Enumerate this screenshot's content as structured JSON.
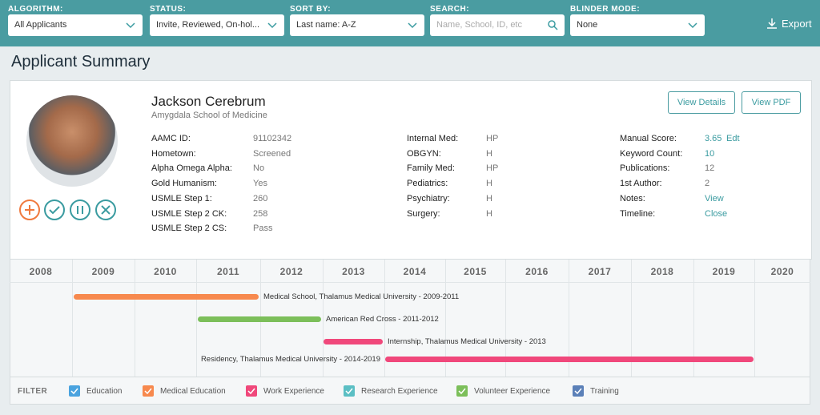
{
  "toolbar": {
    "filters": [
      {
        "label": "ALGORITHM:",
        "value": "All Applicants"
      },
      {
        "label": "STATUS:",
        "value": "Invite, Reviewed, On-hol..."
      },
      {
        "label": "SORT BY:",
        "value": "Last name: A-Z"
      },
      {
        "label": "SEARCH:",
        "placeholder": "Name, School, ID, etc"
      },
      {
        "label": "BLINDER MODE:",
        "value": "None"
      }
    ],
    "export": "Export"
  },
  "page_title": "Applicant Summary",
  "applicant": {
    "name": "Jackson Cerebrum",
    "school": "Amygdala School of Medicine",
    "buttons": [
      "View Details",
      "View PDF"
    ],
    "columns": [
      [
        [
          "AAMC ID:",
          "91102342"
        ],
        [
          "Hometown:",
          "Screened"
        ],
        [
          "Alpha Omega Alpha:",
          "No"
        ],
        [
          "Gold Humanism:",
          "Yes"
        ],
        [
          "USMLE Step 1:",
          "260"
        ],
        [
          "USMLE Step 2 CK:",
          "258"
        ],
        [
          "USMLE Step 2 CS:",
          "Pass"
        ]
      ],
      [
        [
          "Internal Med:",
          "HP"
        ],
        [
          "OBGYN:",
          "H"
        ],
        [
          "Family Med:",
          "HP"
        ],
        [
          "Pediatrics:",
          "H"
        ],
        [
          "Psychiatry:",
          "H"
        ],
        [
          "Surgery:",
          "H"
        ]
      ],
      [
        [
          "Manual Score:",
          "3.65",
          "Edt"
        ],
        [
          "Keyword Count:",
          "10"
        ],
        [
          "Publications:",
          "12"
        ],
        [
          "1st Author:",
          "2"
        ],
        [
          "Notes:",
          "View"
        ],
        [
          "Timeline:",
          "Close"
        ]
      ]
    ]
  },
  "timeline": {
    "years": [
      "2008",
      "2009",
      "2010",
      "2011",
      "2012",
      "2013",
      "2014",
      "2015",
      "2016",
      "2017",
      "2018",
      "2019",
      "2020"
    ],
    "events": [
      {
        "label": "Medical School, Thalamus Medical University - 2009-2011",
        "color": "#f7894e"
      },
      {
        "label": "American Red Cross - 2011-2012",
        "color": "#7cbf5a"
      },
      {
        "label": "Internship, Thalamus Medical University - 2013",
        "color": "#f0487b"
      },
      {
        "label": "Residency, Thalamus Medical University - 2014-2019",
        "color": "#f0487b"
      }
    ]
  },
  "filter": {
    "label": "FILTER",
    "options": [
      {
        "label": "Education",
        "color": "#4aa3df"
      },
      {
        "label": "Medical Education",
        "color": "#f7894e"
      },
      {
        "label": "Work Experience",
        "color": "#f0487b"
      },
      {
        "label": "Research Experience",
        "color": "#5bbfc4"
      },
      {
        "label": "Volunteer Experience",
        "color": "#7cbf5a"
      },
      {
        "label": "Training",
        "color": "#5b80b8"
      }
    ]
  }
}
